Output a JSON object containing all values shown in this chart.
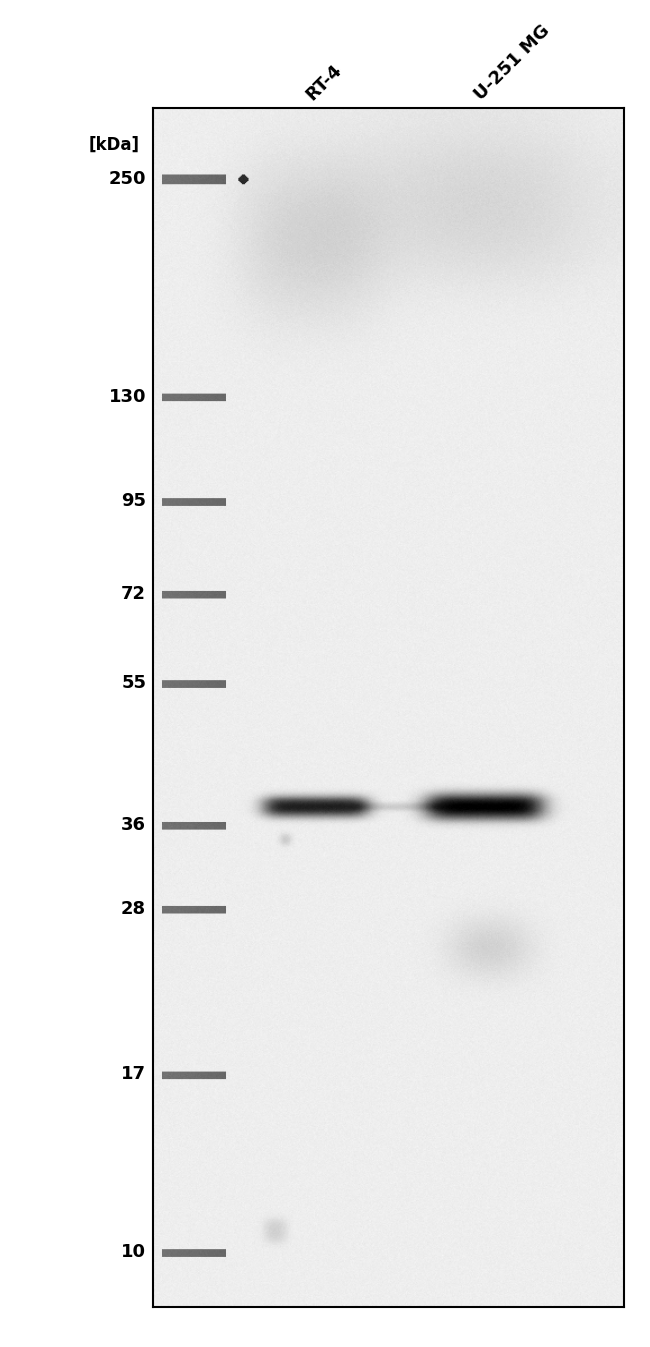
{
  "figure_width": 6.5,
  "figure_height": 13.47,
  "dpi": 100,
  "background_color": "#ffffff",
  "kda_labels": [
    "250",
    "130",
    "95",
    "72",
    "55",
    "36",
    "28",
    "17",
    "10"
  ],
  "kda_values": [
    250,
    130,
    95,
    72,
    55,
    36,
    28,
    17,
    10
  ],
  "sample_labels": [
    "RT-4",
    "U-251 MG"
  ],
  "sample_label_rotation": 45,
  "sample_fontsize": 13,
  "label_fontsize": 13,
  "kdaunits_fontsize": 12,
  "blot_bg": 0.93,
  "marker_gray": 0.45,
  "band_dark": 0.05
}
